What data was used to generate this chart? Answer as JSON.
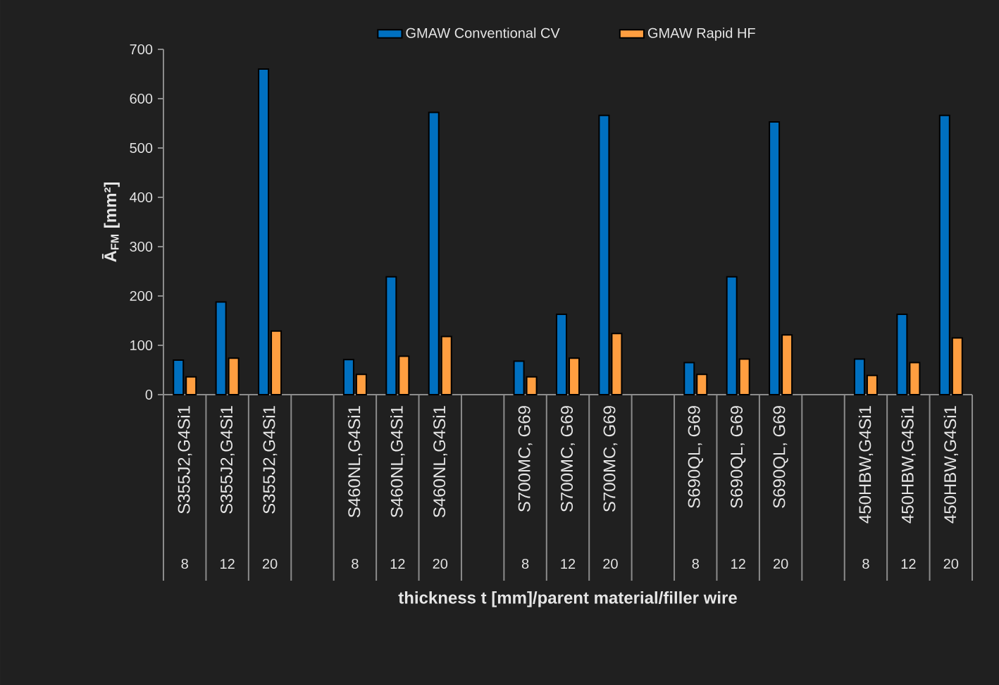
{
  "chart_data": {
    "type": "bar",
    "xlabel": "thickness t [mm]/parent material/filler wire",
    "ylabel": "Ā$_{FM}$ [mm²]",
    "categories": [
      "S355J2,G4Si1",
      "S355J2,G4Si1",
      "S355J2,G4Si1",
      null,
      "S460NL,G4Si1",
      "S460NL,G4Si1",
      "S460NL,G4Si1",
      null,
      "S700MC, G69",
      "S700MC, G69",
      "S700MC, G69",
      null,
      "S690QL, G69",
      "S690QL, G69",
      "S690QL, G69",
      null,
      "450HBW,G4Si1",
      "450HBW,G4Si1",
      "450HBW,G4Si1"
    ],
    "series": [
      {
        "name": "GMAW Conventional CV",
        "color": "#0070c0",
        "values": [
          70,
          188,
          660,
          null,
          71,
          239,
          572,
          null,
          68,
          163,
          566,
          null,
          65,
          239,
          553,
          null,
          72,
          163,
          566
        ]
      },
      {
        "name": "GMAW Rapid HF",
        "color": "#ff9e40",
        "values": [
          36,
          74,
          129,
          null,
          41,
          78,
          118,
          null,
          36,
          74,
          124,
          null,
          41,
          72,
          121,
          null,
          39,
          65,
          115
        ]
      }
    ],
    "annotations": [
      "8",
      "12",
      "20",
      "8",
      "12",
      "20",
      "8",
      "12",
      "20",
      "8",
      "12",
      "20",
      "8",
      "12",
      "20"
    ],
    "ylim": [
      0,
      700
    ],
    "yticks": [
      0,
      100,
      200,
      300,
      400,
      500,
      600,
      700
    ],
    "legend": "top"
  }
}
